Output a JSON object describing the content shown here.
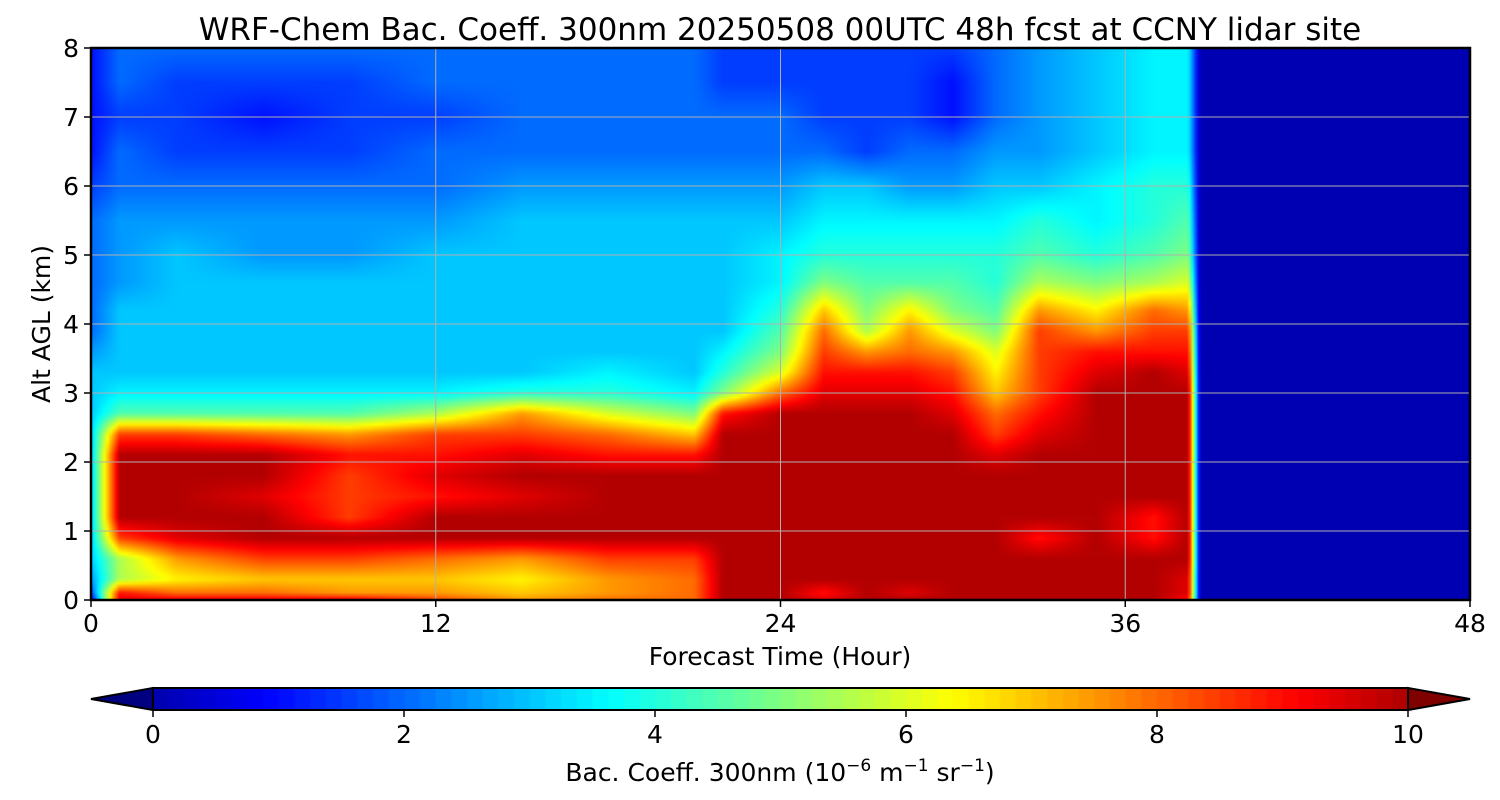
{
  "chart_data": {
    "type": "heatmap",
    "title": "WRF-Chem Bac. Coeff. 300nm  20250508 00UTC 48h fcst at CCNY lidar site",
    "xlabel": "Forecast Time (Hour)",
    "ylabel": "Alt AGL (km)",
    "xlim": [
      0,
      48
    ],
    "ylim": [
      0,
      8
    ],
    "x_ticks": [
      "0",
      "12",
      "24",
      "36",
      "48"
    ],
    "y_ticks": [
      "0",
      "1",
      "2",
      "3",
      "4",
      "5",
      "6",
      "7",
      "8"
    ],
    "grid": true,
    "colorbar": {
      "label": "Bac. Coeff. 300nm  (10",
      "label_exp1": "−6",
      "label_mid": " m",
      "label_exp2": "−1",
      "label_mid2": " sr",
      "label_exp3": "−1",
      "label_end": ")",
      "range": [
        0,
        10
      ],
      "extend": "both",
      "colormap": "jet",
      "ticks": [
        "0",
        "2",
        "4",
        "6",
        "8",
        "10"
      ]
    },
    "x": [
      0,
      1,
      3,
      6,
      9,
      12,
      15,
      18,
      21,
      22,
      24,
      25.5,
      27,
      28.5,
      30,
      31.5,
      33,
      35,
      37,
      38.2,
      38.6,
      48
    ],
    "y": [
      0,
      0.1,
      0.3,
      0.6,
      0.9,
      1.2,
      1.5,
      1.8,
      2.1,
      2.4,
      2.7,
      3.0,
      3.3,
      3.6,
      3.9,
      4.2,
      4.6,
      5.0,
      5.5,
      6.0,
      6.5,
      7.0,
      7.5,
      8.0
    ],
    "z": [
      [
        0.5,
        9.5,
        9.5,
        9.5,
        9.5,
        8.5,
        7.5,
        8.0,
        8.0,
        10.0,
        10.0,
        9.5,
        10.0,
        10.0,
        10.0,
        10.0,
        10.0,
        10.0,
        10.0,
        9.0,
        0.0,
        0.0
      ],
      [
        1.5,
        9.0,
        8.0,
        8.0,
        7.5,
        7.5,
        7.0,
        7.5,
        8.0,
        10.0,
        10.0,
        9.0,
        10.0,
        9.5,
        10.0,
        10.0,
        10.0,
        10.0,
        10.0,
        9.5,
        0.0,
        0.0
      ],
      [
        2.5,
        5.5,
        6.5,
        7.0,
        7.0,
        7.0,
        6.5,
        7.5,
        8.0,
        10.0,
        10.0,
        10.0,
        10.0,
        10.0,
        10.0,
        10.0,
        10.0,
        10.0,
        10.0,
        9.5,
        0.0,
        0.0
      ],
      [
        3.0,
        5.5,
        7.5,
        8.5,
        8.5,
        8.0,
        7.5,
        8.5,
        8.5,
        10.0,
        10.0,
        10.0,
        10.0,
        10.0,
        10.0,
        10.0,
        10.0,
        10.0,
        10.0,
        10.0,
        0.0,
        0.0
      ],
      [
        3.0,
        8.5,
        9.5,
        10.0,
        10.0,
        10.0,
        10.0,
        10.0,
        10.0,
        10.0,
        10.0,
        10.0,
        10.0,
        10.0,
        10.0,
        10.0,
        9.0,
        10.0,
        9.0,
        10.0,
        0.0,
        0.0
      ],
      [
        3.0,
        10.0,
        10.0,
        10.0,
        8.5,
        10.0,
        10.0,
        10.0,
        10.0,
        10.0,
        10.0,
        10.0,
        10.0,
        10.0,
        10.0,
        10.0,
        10.0,
        10.0,
        9.0,
        10.0,
        0.0,
        0.0
      ],
      [
        3.0,
        10.0,
        10.0,
        9.5,
        8.5,
        9.0,
        9.5,
        10.0,
        10.0,
        10.0,
        10.0,
        10.0,
        10.0,
        10.0,
        10.0,
        10.0,
        10.0,
        10.0,
        10.0,
        10.0,
        0.0,
        0.0
      ],
      [
        3.0,
        10.0,
        10.0,
        10.0,
        8.5,
        9.5,
        10.0,
        10.0,
        10.0,
        10.0,
        10.0,
        10.0,
        10.0,
        10.0,
        10.0,
        10.0,
        10.0,
        10.0,
        10.0,
        10.0,
        0.0,
        0.0
      ],
      [
        3.0,
        10.0,
        10.0,
        10.0,
        9.0,
        9.0,
        9.5,
        9.0,
        9.0,
        10.0,
        10.0,
        10.0,
        10.0,
        10.0,
        10.0,
        9.5,
        10.0,
        10.0,
        10.0,
        10.0,
        0.0,
        0.0
      ],
      [
        3.0,
        8.5,
        8.5,
        8.0,
        7.5,
        8.5,
        8.5,
        8.0,
        7.0,
        10.0,
        10.0,
        10.0,
        10.0,
        10.0,
        10.0,
        8.5,
        9.5,
        10.0,
        10.0,
        10.0,
        0.0,
        0.0
      ],
      [
        3.0,
        4.5,
        4.5,
        4.5,
        4.5,
        5.5,
        7.5,
        6.0,
        5.0,
        9.0,
        10.0,
        10.0,
        10.0,
        10.0,
        9.5,
        8.0,
        9.0,
        10.0,
        10.0,
        10.0,
        0.0,
        0.0
      ],
      [
        3.0,
        3.5,
        3.5,
        3.5,
        3.5,
        3.5,
        4.0,
        4.0,
        3.5,
        5.0,
        8.0,
        9.5,
        9.5,
        9.5,
        9.0,
        7.0,
        8.5,
        10.0,
        10.0,
        10.0,
        0.0,
        0.0
      ],
      [
        3.0,
        3.0,
        3.0,
        3.0,
        3.0,
        3.0,
        3.0,
        3.5,
        3.0,
        4.0,
        6.0,
        9.0,
        9.0,
        9.0,
        8.5,
        6.5,
        8.5,
        9.5,
        10.0,
        9.5,
        0.0,
        0.0
      ],
      [
        2.5,
        3.0,
        3.0,
        3.0,
        3.0,
        3.0,
        3.0,
        3.0,
        3.0,
        3.5,
        5.0,
        8.5,
        7.5,
        8.0,
        7.5,
        6.0,
        8.5,
        9.0,
        9.0,
        9.0,
        0.0,
        0.0
      ],
      [
        2.0,
        3.0,
        3.0,
        3.0,
        3.0,
        3.0,
        3.0,
        3.0,
        3.0,
        3.0,
        4.5,
        8.0,
        5.5,
        7.5,
        6.0,
        5.0,
        8.5,
        7.5,
        8.5,
        8.5,
        0.0,
        0.0
      ],
      [
        2.0,
        3.0,
        3.0,
        3.0,
        3.0,
        3.0,
        3.0,
        3.0,
        3.0,
        3.0,
        4.0,
        7.0,
        5.0,
        6.5,
        5.0,
        4.5,
        7.5,
        6.5,
        8.0,
        7.5,
        0.0,
        0.0
      ],
      [
        2.0,
        2.5,
        3.0,
        3.0,
        3.0,
        3.0,
        3.0,
        3.0,
        3.0,
        3.0,
        3.5,
        5.0,
        4.5,
        4.5,
        4.5,
        4.0,
        5.5,
        5.0,
        5.5,
        6.0,
        0.0,
        0.0
      ],
      [
        2.0,
        2.5,
        3.0,
        2.5,
        2.5,
        3.0,
        3.0,
        3.0,
        3.0,
        3.0,
        3.5,
        4.0,
        4.0,
        4.0,
        4.0,
        4.0,
        4.5,
        4.0,
        4.5,
        5.0,
        0.0,
        0.0
      ],
      [
        2.0,
        2.5,
        2.5,
        2.5,
        2.5,
        2.5,
        3.0,
        3.0,
        3.0,
        3.0,
        3.0,
        3.5,
        3.5,
        3.5,
        3.5,
        3.5,
        4.0,
        3.5,
        4.0,
        4.5,
        0.0,
        0.0
      ],
      [
        1.5,
        2.0,
        2.0,
        2.0,
        2.0,
        2.0,
        2.5,
        2.5,
        2.5,
        2.5,
        2.5,
        3.0,
        3.0,
        2.5,
        2.5,
        3.0,
        3.0,
        3.5,
        4.0,
        4.0,
        0.0,
        0.0
      ],
      [
        1.0,
        2.0,
        1.5,
        1.5,
        1.5,
        2.0,
        2.0,
        2.0,
        2.0,
        2.0,
        2.0,
        2.0,
        1.5,
        2.0,
        2.0,
        2.5,
        2.5,
        3.0,
        3.5,
        3.5,
        0.0,
        0.0
      ],
      [
        1.0,
        1.5,
        1.5,
        1.0,
        1.5,
        1.5,
        2.0,
        2.0,
        2.0,
        2.0,
        2.0,
        1.5,
        1.5,
        1.5,
        1.0,
        2.0,
        2.5,
        3.0,
        3.5,
        3.5,
        0.0,
        0.0
      ],
      [
        1.0,
        2.0,
        1.5,
        1.5,
        1.5,
        2.0,
        2.0,
        2.0,
        2.0,
        1.5,
        1.5,
        1.5,
        1.5,
        1.5,
        1.0,
        2.0,
        2.5,
        3.0,
        3.5,
        3.5,
        0.0,
        0.0
      ],
      [
        1.0,
        2.0,
        2.0,
        2.0,
        2.0,
        2.0,
        2.0,
        2.0,
        2.0,
        1.5,
        1.5,
        1.5,
        1.5,
        1.5,
        1.5,
        2.0,
        2.5,
        3.0,
        3.5,
        3.5,
        0.0,
        0.0
      ]
    ]
  }
}
